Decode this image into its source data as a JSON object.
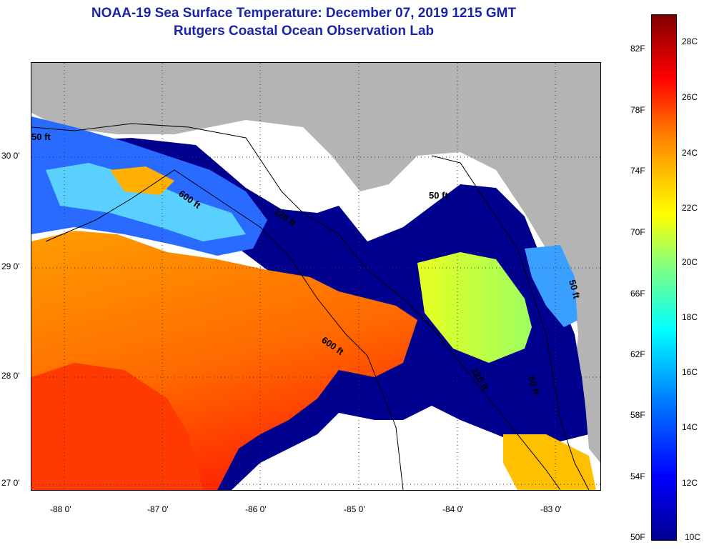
{
  "header": {
    "title_line1": "NOAA-19 Sea Surface Temperature:  December 07, 2019 1215 GMT",
    "title_line2": "Rutgers Coastal Ocean Observation Lab"
  },
  "map": {
    "longitude_labels": [
      "-88 0'",
      "-87 0'",
      "-86 0'",
      "-85 0'",
      "-84 0'",
      "-83 0'"
    ],
    "latitude_labels": [
      "30 0'",
      "29 0'",
      "28 0'",
      "27 0'"
    ],
    "contour_labels": [
      "600 ft",
      "600 ft",
      "120 ft",
      "120 ft",
      "50 ft",
      "50 ft",
      "50 ft",
      "50 ft"
    ],
    "colors": {
      "land": "#b4b4b4",
      "cloud": "#ffffff",
      "cold": "#00008f",
      "warm": "#ff8000",
      "hot": "#ff2a00"
    }
  },
  "colorbar": {
    "fahrenheit_labels": [
      "82F",
      "78F",
      "74F",
      "70F",
      "66F",
      "62F",
      "58F",
      "54F",
      "50F"
    ],
    "celsius_labels": [
      "28C",
      "26C",
      "24C",
      "22C",
      "20C",
      "18C",
      "16C",
      "14C",
      "12C",
      "10C"
    ]
  }
}
